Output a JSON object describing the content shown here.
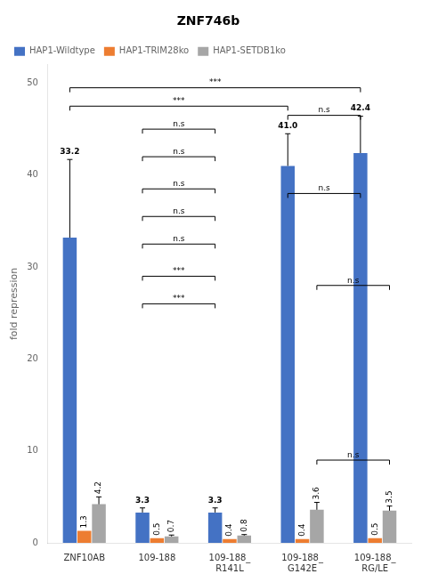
{
  "chart_data": {
    "type": "bar",
    "title": "ZNF746b",
    "ylabel": "fold repression",
    "categories": [
      "ZNF10AB",
      "109-188",
      "109-188_\nR141L",
      "109-188_\nG142E",
      "109-188_\nRG/LE"
    ],
    "series": [
      {
        "name": "HAP1-Wildtype",
        "color": "#4472C4",
        "values": [
          33.2,
          3.3,
          3.3,
          41.0,
          42.4
        ],
        "value_labels": [
          "33.2",
          "3.3",
          "3.3",
          "41.0",
          "42.4"
        ],
        "errors": [
          8.5,
          0.5,
          0.5,
          3.5,
          4.0
        ]
      },
      {
        "name": "HAP1-TRIM28ko",
        "color": "#ED7D31",
        "values": [
          1.3,
          0.5,
          0.4,
          0.4,
          0.5
        ],
        "value_labels": [
          "1.3",
          "0.5",
          "0.4",
          "0.4",
          "0.5"
        ]
      },
      {
        "name": "HAP1-SETDB1ko",
        "color": "#A6A6A6",
        "values": [
          4.2,
          0.7,
          0.8,
          3.6,
          3.5
        ],
        "value_labels": [
          "4.2",
          "0.7",
          "0.8",
          "3.6",
          "3.5"
        ],
        "errors": [
          0.8,
          0.15,
          0.1,
          0.8,
          0.5
        ]
      }
    ],
    "ylim": [
      0,
      52
    ],
    "yticks": [
      0,
      10,
      20,
      30,
      40,
      50
    ],
    "grid": false,
    "legend": "upper left",
    "data_labels": true,
    "annotations": [
      {
        "text": "***",
        "series": "HAP1-Wildtype",
        "from": "ZNF10AB",
        "to": "109-188_\nG142E",
        "y": 47.5
      },
      {
        "text": "***",
        "series": "HAP1-Wildtype",
        "from": "ZNF10AB",
        "to": "109-188_\nRG/LE",
        "y": 49.5
      },
      {
        "text": "n.s",
        "series": "HAP1-Wildtype",
        "from": "109-188",
        "to": "109-188_\nR141L",
        "y": 45.0
      },
      {
        "text": "n.s",
        "series": "HAP1-Wildtype",
        "from": "109-188",
        "to": "109-188_\nR141L",
        "y": 42.0
      },
      {
        "text": "n.s",
        "series": "HAP1-Wildtype",
        "from": "109-188",
        "to": "109-188_\nR141L",
        "y": 38.5
      },
      {
        "text": "n.s",
        "series": "HAP1-Wildtype",
        "from": "109-188",
        "to": "109-188_\nR141L",
        "y": 35.5
      },
      {
        "text": "n.s",
        "series": "HAP1-Wildtype",
        "from": "109-188",
        "to": "109-188_\nR141L",
        "y": 32.5
      },
      {
        "text": "***",
        "series": "HAP1-Wildtype",
        "from": "109-188",
        "to": "109-188_\nR141L",
        "y": 29.0
      },
      {
        "text": "***",
        "series": "HAP1-Wildtype",
        "from": "109-188",
        "to": "109-188_\nR141L",
        "y": 26.0
      },
      {
        "text": "n.s",
        "series": "HAP1-Wildtype",
        "from": "109-188_\nG142E",
        "to": "109-188_\nRG/LE",
        "y": 46.5
      },
      {
        "text": "n.s",
        "series": "HAP1-SETDB1ko",
        "from": "109-188_\nG142E",
        "to": "109-188_\nRG/LE",
        "y": 9.0
      },
      {
        "text": "n.s",
        "series": "HAP1-Wildtype",
        "from": "109-188_\nG142E",
        "to": "109-188_\nRG/LE",
        "y": 38.0
      },
      {
        "text": "n.s",
        "series": "HAP1-SETDB1ko",
        "from": "109-188_\nG142E",
        "to": "109-188_\nRG/LE",
        "y": 28.0
      }
    ]
  }
}
